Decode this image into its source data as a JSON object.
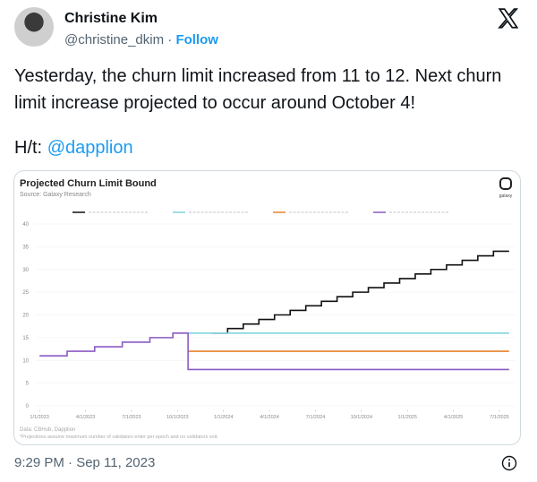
{
  "tweet": {
    "name": "Christine Kim",
    "handle": "@christine_dkim",
    "separator": "·",
    "follow": "Follow",
    "text": "Yesterday, the churn limit increased from 11 to 12. Next churn limit increase projected to occur around October 4!",
    "hat_prefix": "H/t:",
    "hat_mention": "@dapplion",
    "timestamp": "9:29 PM · Sep 11, 2023"
  },
  "chart_data": {
    "type": "line",
    "title": "Projected Churn Limit Bound",
    "subtitle": "Source: Galaxy Research",
    "logo": "galaxy",
    "footnote": "Data: CBHub, Dapplion",
    "note": "*Projections assume maximum number of validators enter per epoch and no validators exit.",
    "xlim": [
      -0.1,
      10.35
    ],
    "ylim": [
      0,
      40
    ],
    "yticks": [
      0,
      5,
      10,
      15,
      20,
      25,
      30,
      35,
      40
    ],
    "xticks": [
      {
        "value": 0,
        "label": "1/1/2023"
      },
      {
        "value": 1,
        "label": "4/1/2023"
      },
      {
        "value": 2,
        "label": "7/1/2023"
      },
      {
        "value": 3,
        "label": "10/1/2023"
      },
      {
        "value": 4,
        "label": "1/1/2024"
      },
      {
        "value": 5,
        "label": "4/1/2024"
      },
      {
        "value": 6,
        "label": "7/1/2024"
      },
      {
        "value": 7,
        "label": "10/1/2024"
      },
      {
        "value": 8,
        "label": "1/1/2025"
      },
      {
        "value": 9,
        "label": "4/1/2025"
      },
      {
        "value": 10,
        "label": "7/1/2025"
      }
    ],
    "grid": true,
    "series": [
      {
        "color": "#111111",
        "x": [
          3.75,
          4.09,
          4.09,
          4.43,
          4.43,
          4.77,
          4.77,
          5.11,
          5.11,
          5.45,
          5.45,
          5.79,
          5.79,
          6.13,
          6.13,
          6.47,
          6.47,
          6.81,
          6.81,
          7.15,
          7.15,
          7.49,
          7.49,
          7.83,
          7.83,
          8.17,
          8.17,
          8.51,
          8.51,
          8.85,
          8.85,
          9.19,
          9.19,
          9.53,
          9.53,
          9.87,
          9.87,
          10.21
        ],
        "values": [
          16,
          16,
          17,
          17,
          18,
          18,
          19,
          19,
          20,
          20,
          21,
          21,
          22,
          22,
          23,
          23,
          24,
          24,
          25,
          25,
          26,
          26,
          27,
          27,
          28,
          28,
          29,
          29,
          30,
          30,
          31,
          31,
          32,
          32,
          33,
          33,
          34,
          34
        ]
      },
      {
        "color": "#7fd3df",
        "x": [
          3.23,
          10.21
        ],
        "values": [
          16,
          16
        ]
      },
      {
        "color": "#e8822a",
        "x": [
          3.23,
          10.21
        ],
        "values": [
          12,
          12
        ]
      },
      {
        "color": "#8a5bc4",
        "x": [
          0,
          0.6,
          0.6,
          1.2,
          1.2,
          1.8,
          1.8,
          2.4,
          2.4,
          2.9,
          2.9,
          3.23,
          3.23,
          10.21
        ],
        "values": [
          11,
          11,
          12,
          12,
          13,
          13,
          14,
          14,
          15,
          15,
          16,
          16,
          8,
          8
        ]
      }
    ]
  }
}
